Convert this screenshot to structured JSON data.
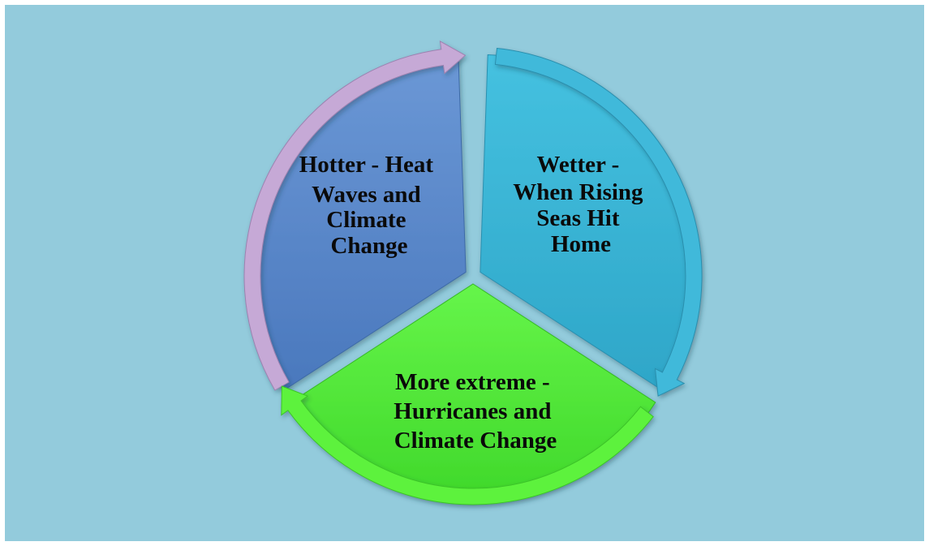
{
  "colors": {
    "background": "#93cbdc",
    "segment_hotter": "#5b8acb",
    "segment_wetter": "#3cb6d6",
    "segment_extreme": "#55ee38",
    "arrow_hotter": "#c6a9d6",
    "arrow_wetter": "#41b9da",
    "arrow_extreme": "#5df23e"
  },
  "segments": [
    {
      "id": "hotter",
      "lines": [
        "Hotter - Heat",
        "Waves and",
        "Climate",
        "Change"
      ]
    },
    {
      "id": "wetter",
      "lines": [
        "Wetter -",
        "When Rising",
        "Seas Hit",
        "Home"
      ]
    },
    {
      "id": "extreme",
      "lines": [
        "More extreme -",
        "Hurricanes and",
        "Climate Change"
      ]
    }
  ]
}
